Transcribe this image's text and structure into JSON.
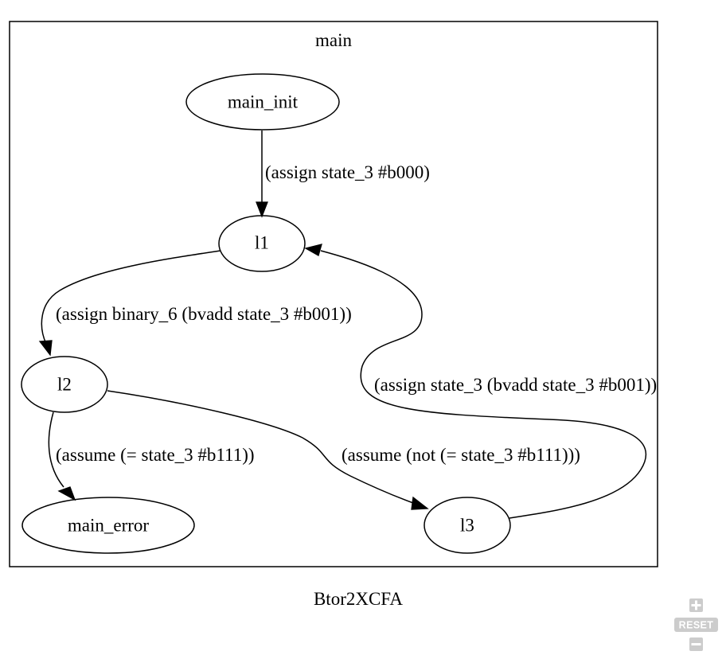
{
  "graph": {
    "title": "Btor2XCFA",
    "cluster_label": "main",
    "nodes": [
      {
        "id": "main_init",
        "label": "main_init"
      },
      {
        "id": "l1",
        "label": "l1"
      },
      {
        "id": "l2",
        "label": "l2"
      },
      {
        "id": "main_error",
        "label": "main_error"
      },
      {
        "id": "l3",
        "label": "l3"
      }
    ],
    "edges": [
      {
        "from": "main_init",
        "to": "l1",
        "label": "(assign state_3 #b000)"
      },
      {
        "from": "l1",
        "to": "l2",
        "label": "(assign binary_6 (bvadd state_3 #b001))"
      },
      {
        "from": "l2",
        "to": "main_error",
        "label": "(assume (= state_3 #b111))"
      },
      {
        "from": "l2",
        "to": "l3",
        "label": "(assume (not (= state_3 #b111)))"
      },
      {
        "from": "l3",
        "to": "l1",
        "label": "(assign state_3 (bvadd state_3 #b001))"
      }
    ]
  },
  "zoom_controls": {
    "zoom_in_icon": "plus-icon",
    "reset_label": "RESET",
    "zoom_out_icon": "minus-icon",
    "color": "#cccccc"
  }
}
